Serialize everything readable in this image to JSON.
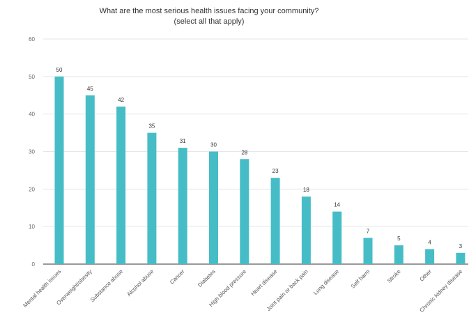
{
  "chart_data": {
    "type": "bar",
    "title": "What are the most serious health issues facing your community?",
    "subtitle": "(select all that apply)",
    "xlabel": "",
    "ylabel": "",
    "ylim": [
      0,
      60
    ],
    "yticks": [
      0,
      10,
      20,
      30,
      40,
      50,
      60
    ],
    "grid": true,
    "legend": "none",
    "bar_color": "#46bdc6",
    "categories": [
      "Mental health issues",
      "Overweight/obesity",
      "Substance abuse",
      "Alcohol abuse",
      "Cancer",
      "Diabetes",
      "High blood pressure",
      "Heart disease",
      "Joint pain or back pain",
      "Lung disease",
      "Self harm",
      "Stroke",
      "Other",
      "Chronic kidney disease"
    ],
    "values": [
      50,
      45,
      42,
      35,
      31,
      30,
      28,
      23,
      18,
      14,
      7,
      5,
      4,
      3
    ]
  }
}
